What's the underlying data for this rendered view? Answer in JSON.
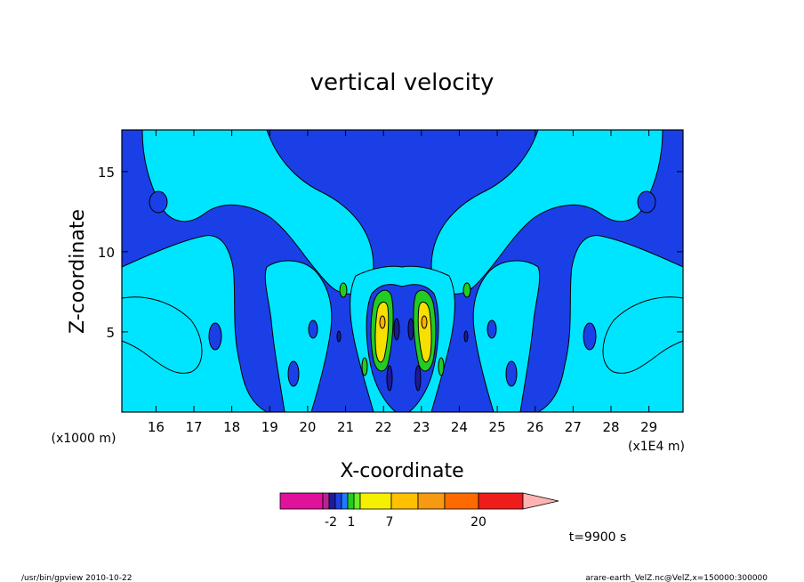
{
  "chart_data": {
    "type": "contour",
    "title": "vertical velocity",
    "xlabel": "X-coordinate",
    "ylabel": "Z-coordinate",
    "x_unit_label": "(x1E4 m)",
    "y_unit_label": "(x1000 m)",
    "x_ticks": [
      "16",
      "17",
      "18",
      "19",
      "20",
      "21",
      "22",
      "23",
      "24",
      "25",
      "26",
      "27",
      "28",
      "29"
    ],
    "y_ticks": [
      "5",
      "10",
      "15"
    ],
    "xlim": [
      15.1,
      29.9
    ],
    "ylim": [
      0,
      17.6
    ],
    "colorbar": {
      "labels": [
        "-2",
        "1",
        "7",
        "20"
      ],
      "colors": [
        "#e0119a",
        "#b7238f",
        "#1b1b9e",
        "#1f3fe0",
        "#1f7bff",
        "#22cc22",
        "#66ee22",
        "#f5f000",
        "#ffc000",
        "#f59a12",
        "#ff6a00",
        "#f01c1c",
        "#ff7777",
        "#ffb3b3"
      ]
    },
    "time_label": "t=9900 s",
    "footer_left": "/usr/bin/gpview   2010-10-22",
    "footer_right": "arare-earth_VelZ.nc@VelZ,x=150000:300000",
    "colors": {
      "cyan": "#00e5ff",
      "blue": "#1b3fe6",
      "navy": "#1a1a9a",
      "green": "#22cc22",
      "yellow": "#f5e000",
      "orange": "#ffb000"
    }
  }
}
